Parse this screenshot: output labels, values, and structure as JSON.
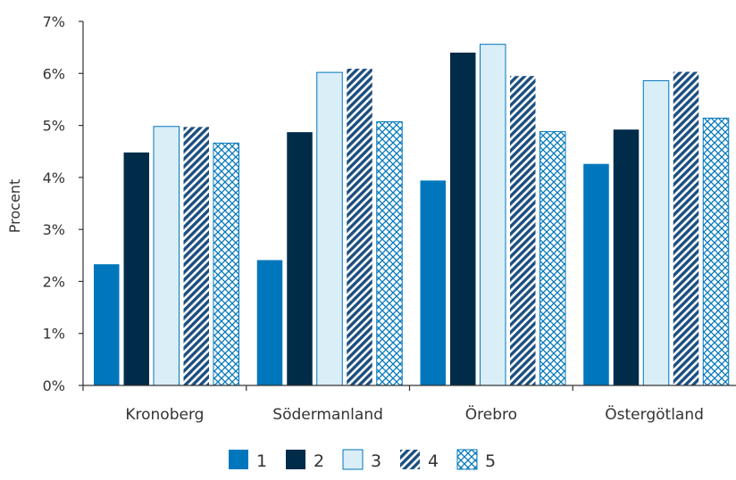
{
  "chart_data": {
    "type": "bar",
    "ylabel": "Procent",
    "xlabel": "",
    "ylim": [
      0,
      7
    ],
    "yticks": [
      0,
      1,
      2,
      3,
      4,
      5,
      6,
      7
    ],
    "ytick_labels": [
      "0%",
      "1%",
      "2%",
      "3%",
      "4%",
      "5%",
      "6%",
      "7%"
    ],
    "categories": [
      "Kronoberg",
      "Södermanland",
      "Örebro",
      "Östergötland"
    ],
    "series": [
      {
        "name": "1",
        "values": [
          2.33,
          2.41,
          3.94,
          4.26
        ],
        "color": "#0077bc",
        "pattern": "solid"
      },
      {
        "name": "2",
        "values": [
          4.48,
          4.87,
          6.4,
          4.92
        ],
        "color": "#002c49",
        "pattern": "solid"
      },
      {
        "name": "3",
        "values": [
          4.98,
          6.02,
          6.56,
          5.86
        ],
        "color": "#daeef8",
        "pattern": "solid-outline"
      },
      {
        "name": "4",
        "values": [
          4.97,
          6.09,
          5.95,
          6.03
        ],
        "color": "#1c4e80",
        "pattern": "diagonal"
      },
      {
        "name": "5",
        "values": [
          4.66,
          5.07,
          4.88,
          5.14
        ],
        "color": "#daeef8",
        "pattern": "crosshatch"
      }
    ],
    "legend_position": "bottom-center",
    "grid": false
  }
}
